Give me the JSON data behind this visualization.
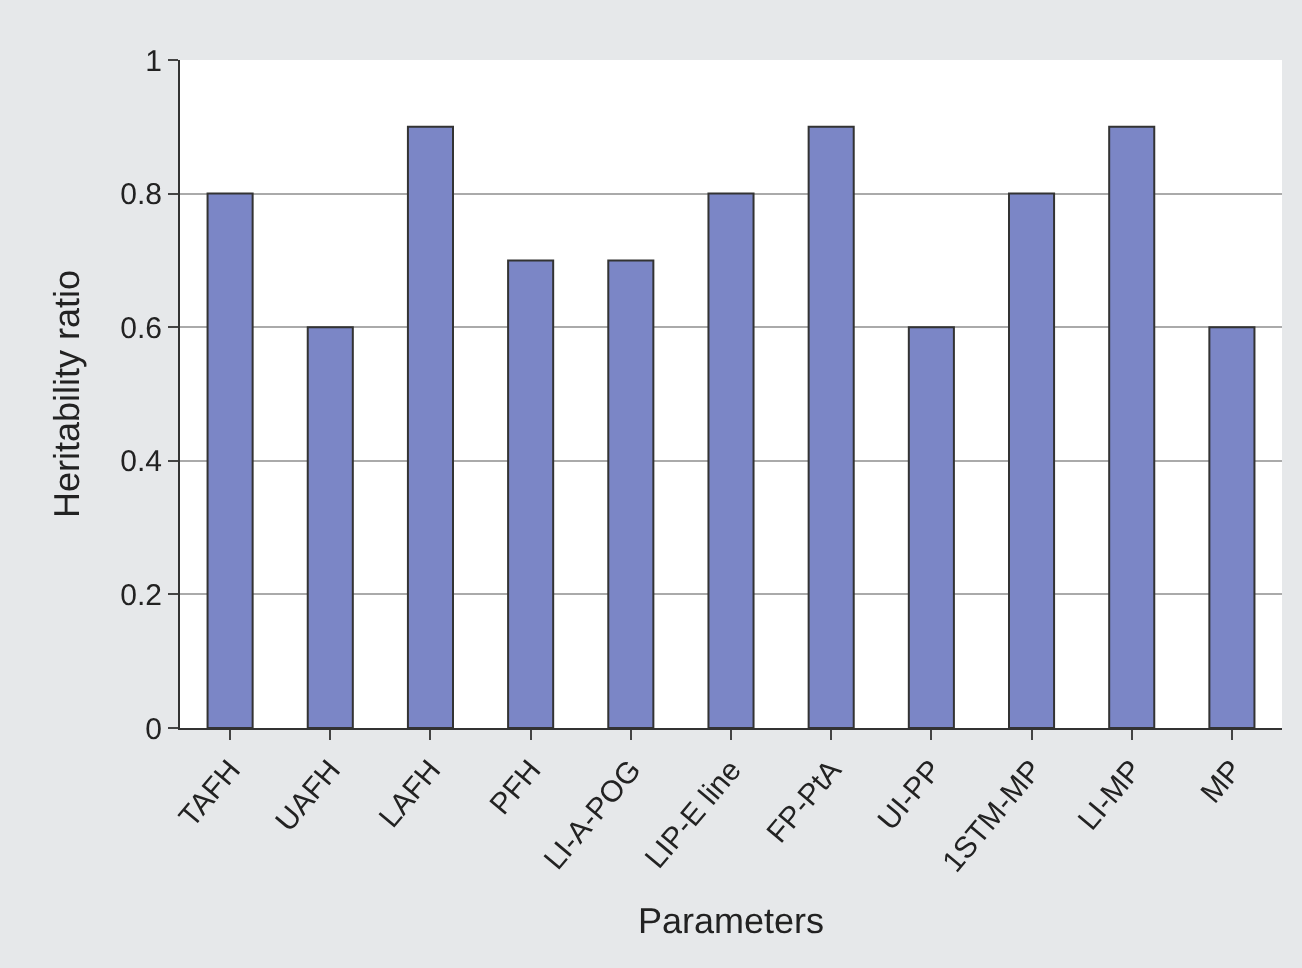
{
  "chart_data": {
    "type": "bar",
    "xlabel": "Parameters",
    "ylabel": "Heritability ratio",
    "categories": [
      "TAFH",
      "UAFH",
      "LAFH",
      "PFH",
      "LI-A-POG",
      "LIP-E line",
      "FP-PtA",
      "UI-PP",
      "1STM-MP",
      "LI-MP",
      "MP"
    ],
    "values": [
      0.8,
      0.6,
      0.9,
      0.7,
      0.7,
      0.8,
      0.9,
      0.6,
      0.8,
      0.9,
      0.6
    ],
    "color": "#7b86c6",
    "ylim": [
      0,
      1
    ],
    "yticks": [
      0,
      0.2,
      0.4,
      0.6,
      0.8,
      1
    ],
    "grid": "y"
  }
}
